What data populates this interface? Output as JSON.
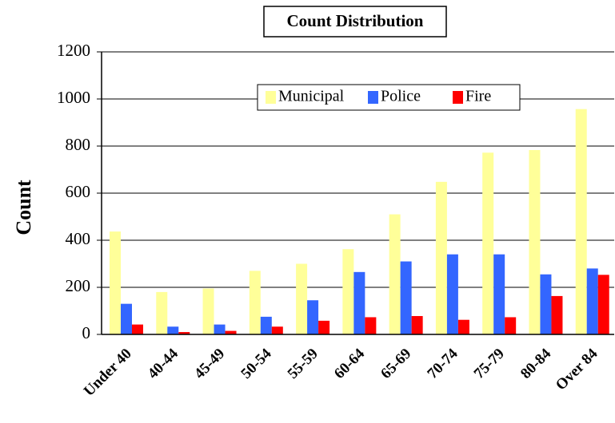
{
  "chart_data": {
    "type": "bar",
    "title": "Count Distribution",
    "ylabel": "Count",
    "categories": [
      "Under 40",
      "40-44",
      "45-49",
      "50-54",
      "55-59",
      "60-64",
      "65-69",
      "70-74",
      "75-79",
      "80-84",
      "Over 84"
    ],
    "series": [
      {
        "name": "Municipal",
        "color": "#ffff99",
        "values": [
          437,
          180,
          195,
          270,
          300,
          362,
          510,
          648,
          772,
          783,
          957
        ]
      },
      {
        "name": "Police",
        "color": "#3366ff",
        "values": [
          130,
          33,
          42,
          75,
          145,
          265,
          310,
          340,
          340,
          255,
          280
        ]
      },
      {
        "name": "Fire",
        "color": "#ff0000",
        "values": [
          42,
          10,
          15,
          33,
          58,
          73,
          78,
          62,
          73,
          163,
          253
        ]
      }
    ],
    "ylim": [
      0,
      1200
    ],
    "yticks": [
      0,
      200,
      400,
      600,
      800,
      1000,
      1200
    ],
    "grid": true,
    "legend": "top"
  }
}
